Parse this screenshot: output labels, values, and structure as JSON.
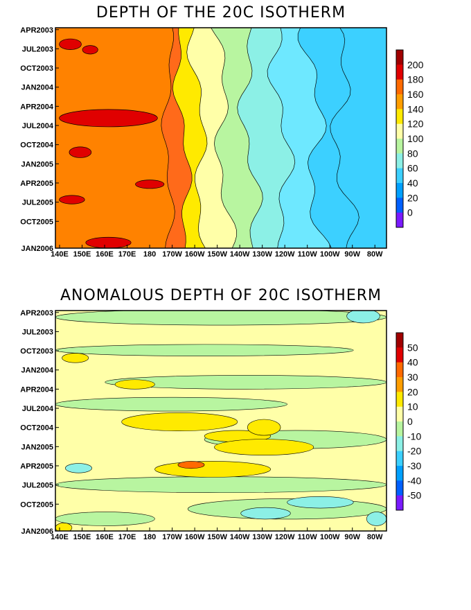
{
  "chart_data": [
    {
      "type": "heatmap",
      "title": "DEPTH OF THE 20C ISOTHERM",
      "x_ticks": [
        "140E",
        "150E",
        "160E",
        "170E",
        "180",
        "170W",
        "160W",
        "150W",
        "140W",
        "130W",
        "120W",
        "110W",
        "100W",
        "90W",
        "80W"
      ],
      "y_ticks": [
        "APR2003",
        "JUL2003",
        "OCT2003",
        "JAN2004",
        "APR2004",
        "JUL2004",
        "OCT2004",
        "JAN2005",
        "APR2005",
        "JUL2005",
        "OCT2005",
        "JAN2006"
      ],
      "colorbar_labels": [
        "200",
        "180",
        "160",
        "140",
        "120",
        "100",
        "80",
        "60",
        "40",
        "20",
        "0"
      ],
      "colorbar_levels": [
        220,
        200,
        180,
        160,
        140,
        120,
        100,
        80,
        60,
        40,
        20,
        0,
        -20
      ],
      "colorbar_colors": [
        "#a00000",
        "#e00000",
        "#ff6a00",
        "#ff9e00",
        "#ffea00",
        "#ffffa8",
        "#b8f5a0",
        "#8cf0e6",
        "#3cd0ff",
        "#00a0ff",
        "#0060ff",
        "#7a1aff"
      ],
      "band_edges": [
        0.34,
        0.4,
        0.45,
        0.52,
        0.6,
        0.7,
        0.8,
        0.88
      ],
      "band_colors": [
        "#ff8200",
        "#ff6a1a",
        "#ffea00",
        "#ffffa8",
        "#b8f5a0",
        "#8cf0e6",
        "#6ee8ff",
        "#3cd0ff"
      ]
    },
    {
      "type": "heatmap",
      "title": "ANOMALOUS DEPTH OF 20C ISOTHERM",
      "x_ticks": [
        "140E",
        "150E",
        "160E",
        "170E",
        "180",
        "170W",
        "160W",
        "150W",
        "140W",
        "130W",
        "120W",
        "110W",
        "100W",
        "90W",
        "80W"
      ],
      "y_ticks": [
        "APR2003",
        "JUL2003",
        "OCT2003",
        "JAN2004",
        "APR2004",
        "JUL2004",
        "OCT2004",
        "JAN2005",
        "APR2005",
        "JUL2005",
        "OCT2005",
        "JAN2006"
      ],
      "colorbar_labels": [
        "50",
        "40",
        "30",
        "20",
        "10",
        "0",
        "-10",
        "-20",
        "-30",
        "-40",
        "-50"
      ],
      "colorbar_levels": [
        60,
        50,
        40,
        30,
        20,
        10,
        0,
        -10,
        -20,
        -30,
        -40,
        -50,
        -60
      ],
      "colorbar_colors": [
        "#a00000",
        "#e00000",
        "#ff6a00",
        "#ff9e00",
        "#ffea00",
        "#ffffa8",
        "#b8f5a0",
        "#8cf0e6",
        "#3cd0ff",
        "#00a0ff",
        "#0060ff",
        "#7a1aff"
      ],
      "background_color": "#ffffa8",
      "patch_colors": [
        "#b8f5a0",
        "#ffea00",
        "#8cf0e6",
        "#ff6a00"
      ]
    }
  ]
}
